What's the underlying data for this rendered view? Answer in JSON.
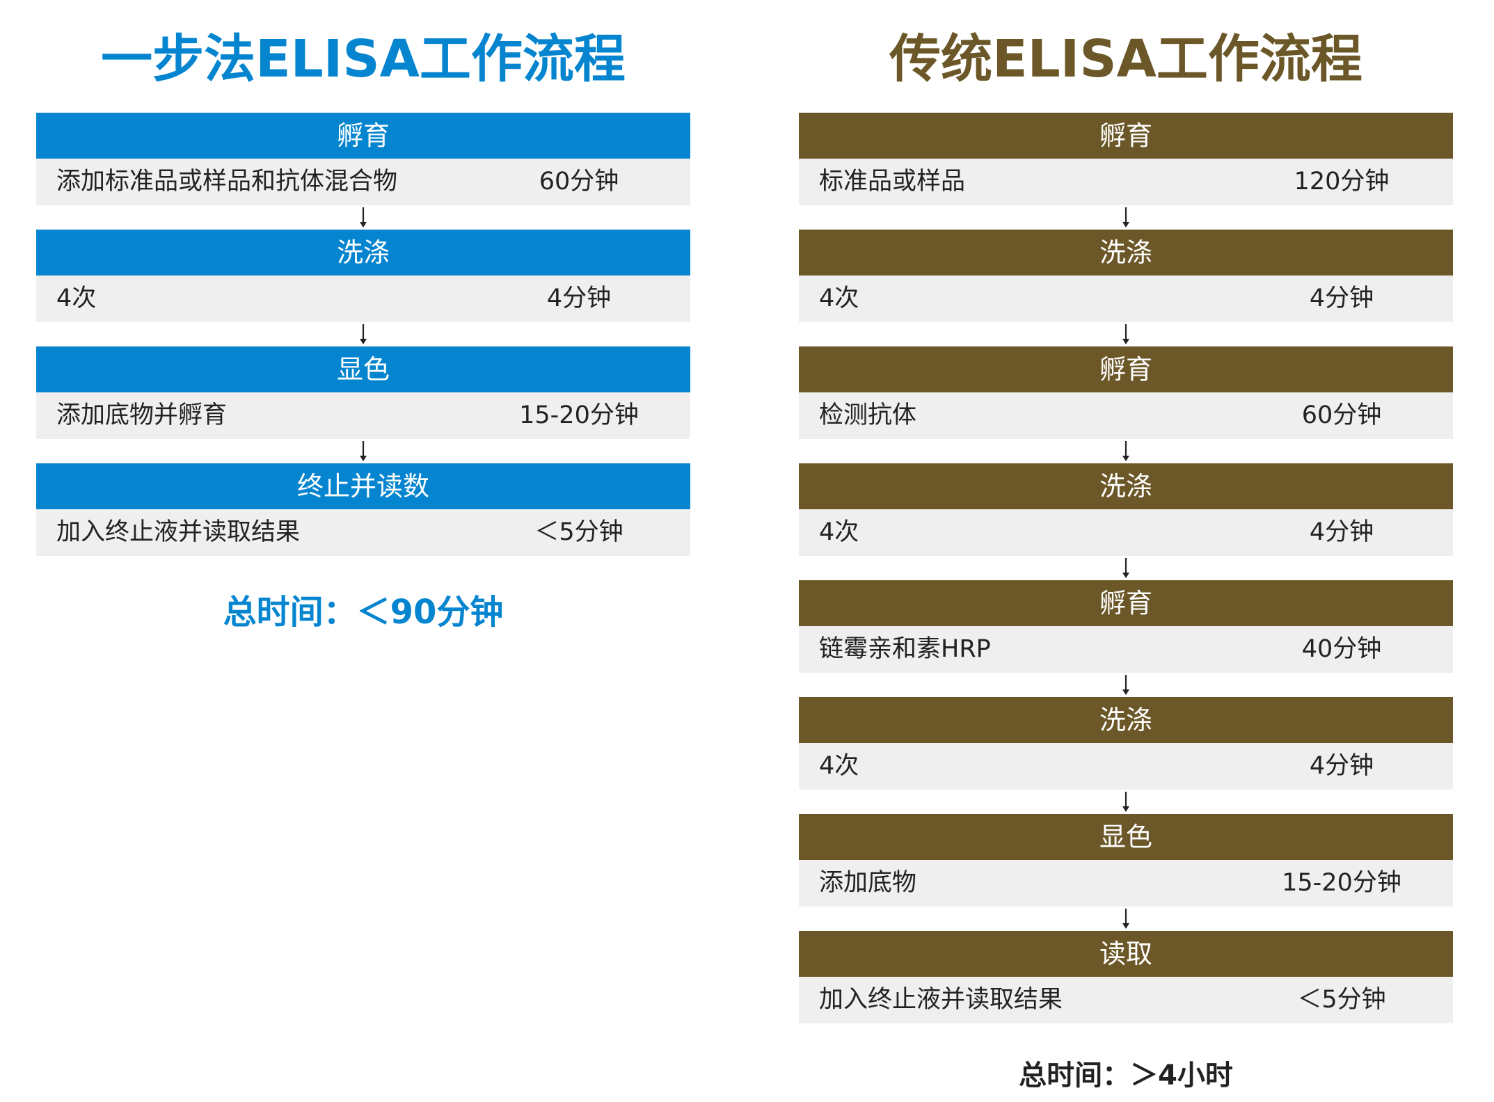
{
  "colors": {
    "left_accent": "#0585cf",
    "right_accent": "#6b5727"
  },
  "left": {
    "title": "一步法ELISA工作流程",
    "steps": [
      {
        "header": "孵育",
        "description": "添加标准品或样品和抗体混合物",
        "time": "60分钟"
      },
      {
        "header": "洗涤",
        "description": "4次",
        "time": "4分钟"
      },
      {
        "header": "显色",
        "description": "添加底物并孵育",
        "time": "15-20分钟"
      },
      {
        "header": "终止并读数",
        "description": "加入终止液并读取结果",
        "time": "＜5分钟"
      }
    ],
    "total": "总时间：＜90分钟"
  },
  "right": {
    "title": "传统ELISA工作流程",
    "steps": [
      {
        "header": "孵育",
        "description": "标准品或样品",
        "time": "120分钟"
      },
      {
        "header": "洗涤",
        "description": "4次",
        "time": "4分钟"
      },
      {
        "header": "孵育",
        "description": "检测抗体",
        "time": "60分钟"
      },
      {
        "header": "洗涤",
        "description": "4次",
        "time": "4分钟"
      },
      {
        "header": "孵育",
        "description": "链霉亲和素HRP",
        "time": "40分钟"
      },
      {
        "header": "洗涤",
        "description": "4次",
        "time": "4分钟"
      },
      {
        "header": "显色",
        "description": "添加底物",
        "time": "15-20分钟"
      },
      {
        "header": "读取",
        "description": "加入终止液并读取结果",
        "time": "＜5分钟"
      }
    ],
    "total": "总时间：＞4小时"
  }
}
